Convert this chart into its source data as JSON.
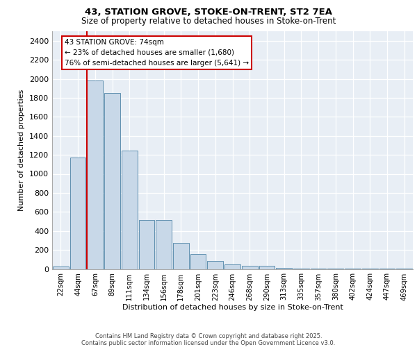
{
  "title1": "43, STATION GROVE, STOKE-ON-TRENT, ST2 7EA",
  "title2": "Size of property relative to detached houses in Stoke-on-Trent",
  "xlabel": "Distribution of detached houses by size in Stoke-on-Trent",
  "ylabel": "Number of detached properties",
  "categories": [
    "22sqm",
    "44sqm",
    "67sqm",
    "89sqm",
    "111sqm",
    "134sqm",
    "156sqm",
    "178sqm",
    "201sqm",
    "223sqm",
    "246sqm",
    "268sqm",
    "290sqm",
    "313sqm",
    "335sqm",
    "357sqm",
    "380sqm",
    "402sqm",
    "424sqm",
    "447sqm",
    "469sqm"
  ],
  "values": [
    25,
    1170,
    1980,
    1850,
    1245,
    515,
    515,
    275,
    155,
    85,
    45,
    30,
    30,
    10,
    5,
    5,
    5,
    5,
    5,
    5,
    5
  ],
  "bar_color": "#c8d8e8",
  "bar_edge_color": "#6090b0",
  "vline_color": "#cc0000",
  "annotation_text": "43 STATION GROVE: 74sqm\n← 23% of detached houses are smaller (1,680)\n76% of semi-detached houses are larger (5,641) →",
  "annotation_box_color": "#ffffff",
  "annotation_box_edge": "#cc0000",
  "ylim": [
    0,
    2500
  ],
  "yticks": [
    0,
    200,
    400,
    600,
    800,
    1000,
    1200,
    1400,
    1600,
    1800,
    2000,
    2200,
    2400
  ],
  "bg_color": "#e8eef5",
  "footer1": "Contains HM Land Registry data © Crown copyright and database right 2025.",
  "footer2": "Contains public sector information licensed under the Open Government Licence v3.0."
}
